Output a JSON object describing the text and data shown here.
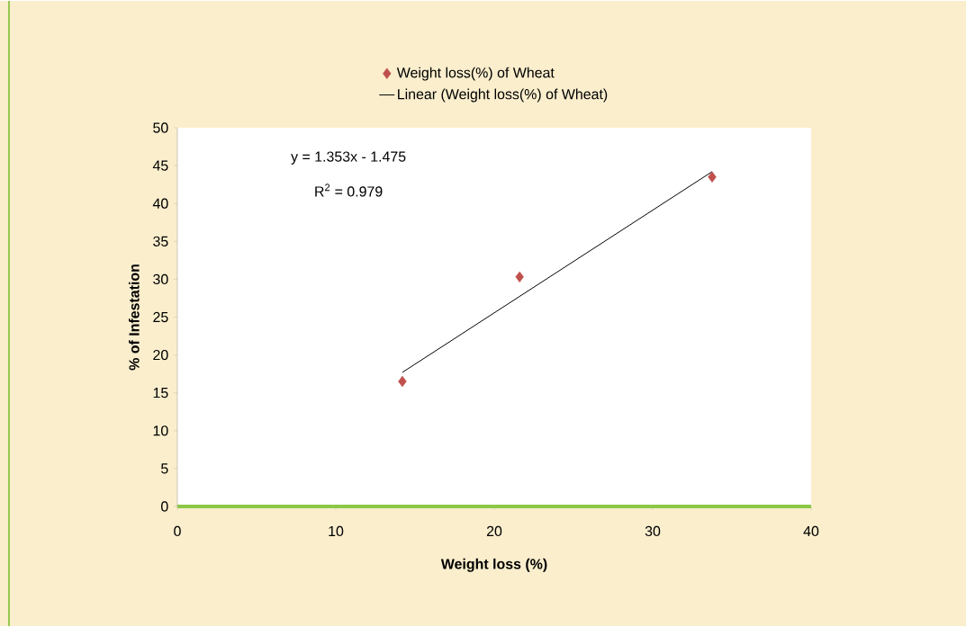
{
  "chart_data": {
    "type": "scatter",
    "xlabel": "Weight loss (%)",
    "ylabel": "% of Infestation",
    "xlim": [
      0,
      40
    ],
    "xticks": [
      0,
      10,
      20,
      30,
      40
    ],
    "ylim": [
      0,
      50
    ],
    "yticks": [
      0,
      5,
      10,
      15,
      20,
      25,
      30,
      35,
      40,
      45,
      50
    ],
    "legend": "top",
    "grid": false,
    "annotations": [
      "y = 1.353x - 1.475",
      "R$^{2}$ = 0.979"
    ],
    "series": [
      {
        "name": "Weight loss(%) of Wheat",
        "marker": "diamond",
        "color": "#c0504d",
        "x": [
          14.2,
          21.6,
          33.75
        ],
        "values": [
          16.5,
          30.3,
          43.5
        ]
      },
      {
        "name": "Linear (Weight loss(%) of Wheat)",
        "type": "line",
        "marker": "none",
        "line_style": "solid",
        "color": "#000000",
        "x": [
          14.2,
          33.75
        ],
        "values": [
          17.7,
          44.2
        ]
      }
    ]
  }
}
